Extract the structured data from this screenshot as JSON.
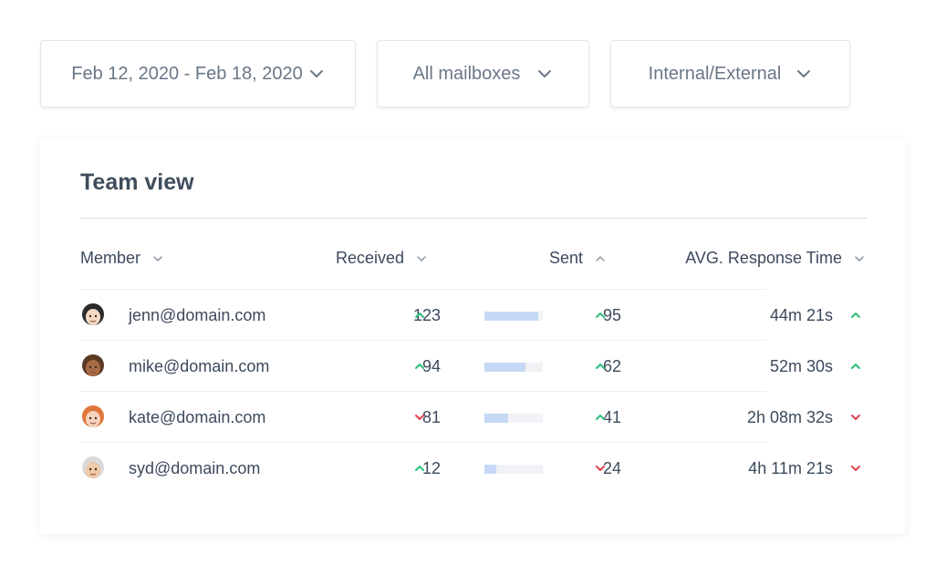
{
  "filters": {
    "date_range": "Feb 12, 2020 - Feb 18, 2020",
    "mailbox": "All mailboxes",
    "scope": "Internal/External"
  },
  "card": {
    "title": "Team view",
    "columns": {
      "member": "Member",
      "received": "Received",
      "sent": "Sent",
      "avg_response": "AVG. Response Time"
    },
    "rows": [
      {
        "email": "jenn@domain.com",
        "avatar_icon": "woman-dark-hair-avatar-icon",
        "received": "123",
        "received_trend": "up",
        "sent": "95",
        "sent_trend": "up",
        "sent_bar": 0.92,
        "avg": "44m 21s",
        "avg_trend": "up"
      },
      {
        "email": "mike@domain.com",
        "avatar_icon": "man-beard-avatar-icon",
        "received": "94",
        "received_trend": "up",
        "sent": "62",
        "sent_trend": "up",
        "sent_bar": 0.7,
        "avg": "52m 30s",
        "avg_trend": "up"
      },
      {
        "email": "kate@domain.com",
        "avatar_icon": "woman-red-hair-avatar-icon",
        "received": "81",
        "received_trend": "down",
        "sent": "41",
        "sent_trend": "up",
        "sent_bar": 0.4,
        "avg": "2h 08m 32s",
        "avg_trend": "down"
      },
      {
        "email": "syd@domain.com",
        "avatar_icon": "older-man-avatar-icon",
        "received": "12",
        "received_trend": "up",
        "sent": "24",
        "sent_trend": "down",
        "sent_bar": 0.2,
        "avg": "4h 11m 21s",
        "avg_trend": "down"
      }
    ]
  },
  "colors": {
    "trend_up": "#2bbf7a",
    "trend_down": "#e0434f",
    "bar_fill": "#c5d9f6",
    "bar_track": "#f0f2f5"
  }
}
